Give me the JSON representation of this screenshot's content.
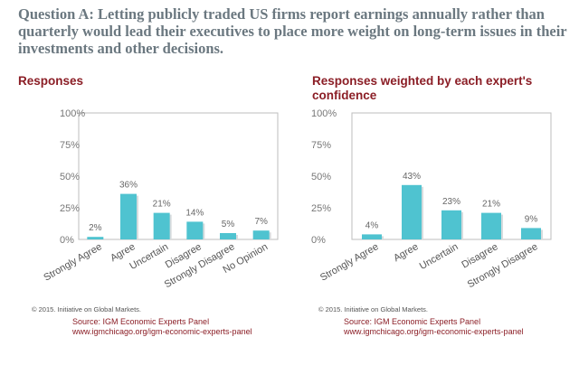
{
  "question": "Question A: Letting publicly traded US firms report earnings annually rather than quarterly would lead their executives to place more weight on long-term issues in their investments and other decisions.",
  "colors": {
    "bar": "#4fc3d0",
    "title": "#8b1e26",
    "question": "#6b7880"
  },
  "chart_data": [
    {
      "type": "bar",
      "title": "Responses",
      "categories": [
        "Strongly Agree",
        "Agree",
        "Uncertain",
        "Disagree",
        "Strongly Disagree",
        "No Opinion"
      ],
      "values": [
        2,
        36,
        21,
        14,
        5,
        7
      ],
      "value_labels": [
        "2%",
        "36%",
        "21%",
        "14%",
        "5%",
        "7%"
      ],
      "y_ticks": [
        "0%",
        "25%",
        "50%",
        "75%",
        "100%"
      ],
      "ylim": [
        0,
        100
      ],
      "copyright": "© 2015. Initiative on Global Markets.",
      "source": "Source: IGM Economic Experts Panel",
      "source_url": "www.igmchicago.org/igm-economic-experts-panel"
    },
    {
      "type": "bar",
      "title": "Responses weighted by each expert's confidence",
      "categories": [
        "Strongly Agree",
        "Agree",
        "Uncertain",
        "Disagree",
        "Strongly Disagree"
      ],
      "values": [
        4,
        43,
        23,
        21,
        9
      ],
      "value_labels": [
        "4%",
        "43%",
        "23%",
        "21%",
        "9%"
      ],
      "y_ticks": [
        "0%",
        "25%",
        "50%",
        "75%",
        "100%"
      ],
      "ylim": [
        0,
        100
      ],
      "copyright": "© 2015. Initiative on Global Markets.",
      "source": "Source: IGM Economic Experts Panel",
      "source_url": "www.igmchicago.org/igm-economic-experts-panel"
    }
  ]
}
